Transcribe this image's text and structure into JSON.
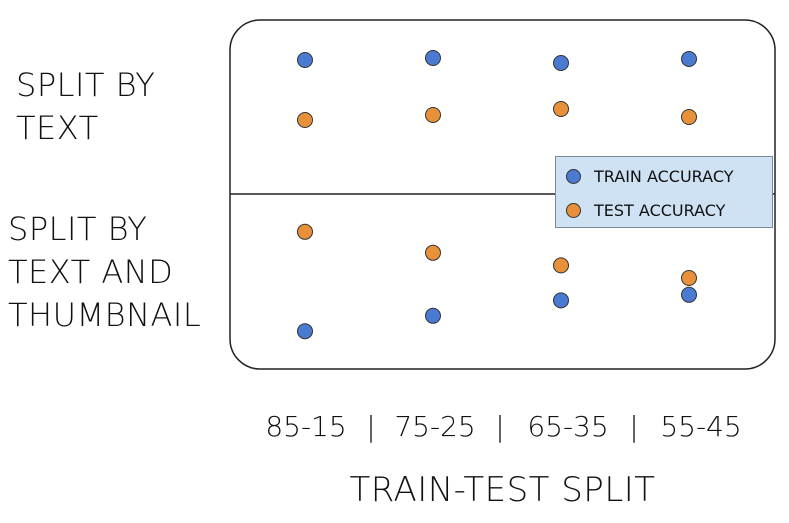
{
  "chart_data": {
    "type": "scatter",
    "title": "",
    "xlabel": "TRAIN-TEST SPLIT",
    "categories": [
      "85-15",
      "75-25",
      "65-35",
      "55-45"
    ],
    "category_separator": "|",
    "rows": [
      {
        "label_lines": [
          "SPLIT BY",
          "TEXT"
        ],
        "series": [
          {
            "name": "TRAIN ACCURACY",
            "values": [
              0.9,
              0.92,
              0.87,
              0.91
            ]
          },
          {
            "name": "TEST ACCURACY",
            "values": [
              0.3,
              0.35,
              0.41,
              0.33
            ]
          }
        ]
      },
      {
        "label_lines": [
          "SPLIT BY",
          "TEXT AND",
          "THUMBNAIL"
        ],
        "series": [
          {
            "name": "TRAIN ACCURACY",
            "values": [
              0.17,
              0.28,
              0.39,
              0.43
            ]
          },
          {
            "name": "TEST ACCURACY",
            "values": [
              0.88,
              0.73,
              0.64,
              0.55
            ]
          }
        ]
      }
    ],
    "legend": {
      "placement": "middle-right",
      "entries": [
        {
          "label": "TRAIN ACCURACY",
          "color": "#4a7bd0"
        },
        {
          "label": "TEST ACCURACY",
          "color": "#e8913a"
        }
      ]
    },
    "colors": {
      "train": "#4a7bd0",
      "test": "#e8913a",
      "legend_bg": "#cfe2f3"
    }
  }
}
